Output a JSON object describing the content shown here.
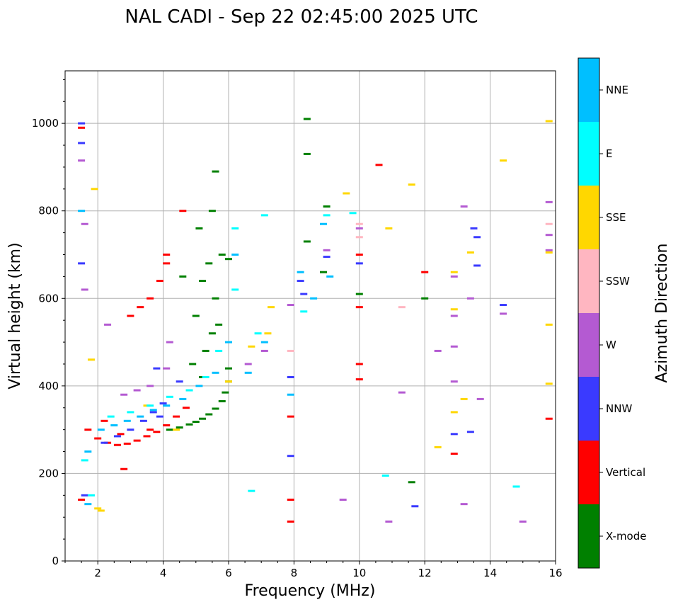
{
  "chart_data": {
    "type": "scatter",
    "title": "NAL CADI - Sep 22 02:45:00 2025 UTC",
    "xlabel": "Frequency (MHz)",
    "ylabel": "Virtual height (km)",
    "xlim": [
      1,
      16
    ],
    "ylim": [
      0,
      1120
    ],
    "xticks": [
      2,
      4,
      6,
      8,
      10,
      12,
      14,
      16
    ],
    "yticks": [
      0,
      200,
      400,
      600,
      800,
      1000
    ],
    "grid": true,
    "colorbar": {
      "title": "Azimuth Direction",
      "categories": [
        {
          "name": "X-mode",
          "color": "#008000"
        },
        {
          "name": "Vertical",
          "color": "#ff0000"
        },
        {
          "name": "NNW",
          "color": "#3a3aff"
        },
        {
          "name": "W",
          "color": "#b45ad2"
        },
        {
          "name": "SSW",
          "color": "#ffb6c1"
        },
        {
          "name": "SSE",
          "color": "#ffd700"
        },
        {
          "name": "E",
          "color": "#00ffff"
        },
        {
          "name": "NNE",
          "color": "#00bfff"
        }
      ]
    },
    "series": [
      {
        "name": "X-mode",
        "points": [
          [
            4.2,
            300
          ],
          [
            4.5,
            305
          ],
          [
            4.8,
            312
          ],
          [
            5.0,
            318
          ],
          [
            5.2,
            325
          ],
          [
            5.4,
            335
          ],
          [
            5.6,
            348
          ],
          [
            5.8,
            365
          ],
          [
            5.9,
            385
          ],
          [
            6.0,
            410
          ],
          [
            6.0,
            440
          ],
          [
            5.3,
            480
          ],
          [
            5.5,
            520
          ],
          [
            5.0,
            560
          ],
          [
            5.6,
            600
          ],
          [
            5.2,
            640
          ],
          [
            5.4,
            680
          ],
          [
            5.8,
            700
          ],
          [
            5.1,
            760
          ],
          [
            5.5,
            800
          ],
          [
            5.6,
            890
          ],
          [
            8.4,
            730
          ],
          [
            8.4,
            930
          ],
          [
            8.4,
            1010
          ],
          [
            8.9,
            660
          ],
          [
            9.0,
            810
          ],
          [
            10.0,
            610
          ],
          [
            12.0,
            600
          ],
          [
            11.6,
            180
          ],
          [
            5.2,
            420
          ],
          [
            4.9,
            450
          ],
          [
            5.7,
            540
          ],
          [
            6.0,
            690
          ],
          [
            4.6,
            650
          ]
        ]
      },
      {
        "name": "Vertical",
        "points": [
          [
            1.5,
            990
          ],
          [
            1.5,
            140
          ],
          [
            1.7,
            300
          ],
          [
            2.0,
            280
          ],
          [
            2.3,
            270
          ],
          [
            2.6,
            265
          ],
          [
            2.9,
            268
          ],
          [
            3.2,
            275
          ],
          [
            3.5,
            285
          ],
          [
            3.8,
            295
          ],
          [
            4.1,
            310
          ],
          [
            4.4,
            330
          ],
          [
            4.7,
            350
          ],
          [
            2.2,
            320
          ],
          [
            2.7,
            290
          ],
          [
            3.6,
            300
          ],
          [
            3.0,
            560
          ],
          [
            3.3,
            580
          ],
          [
            3.6,
            600
          ],
          [
            3.9,
            640
          ],
          [
            4.1,
            680
          ],
          [
            4.1,
            700
          ],
          [
            4.6,
            800
          ],
          [
            7.9,
            330
          ],
          [
            7.9,
            140
          ],
          [
            7.9,
            90
          ],
          [
            10.0,
            700
          ],
          [
            10.0,
            580
          ],
          [
            10.0,
            450
          ],
          [
            10.0,
            415
          ],
          [
            10.6,
            905
          ],
          [
            12.0,
            660
          ],
          [
            12.9,
            245
          ],
          [
            15.8,
            325
          ],
          [
            2.8,
            210
          ]
        ]
      },
      {
        "name": "NNW",
        "points": [
          [
            1.5,
            1000
          ],
          [
            1.5,
            955
          ],
          [
            1.5,
            680
          ],
          [
            1.6,
            150
          ],
          [
            2.2,
            270
          ],
          [
            2.6,
            285
          ],
          [
            3.0,
            300
          ],
          [
            3.4,
            320
          ],
          [
            3.7,
            340
          ],
          [
            3.9,
            330
          ],
          [
            4.0,
            360
          ],
          [
            4.5,
            410
          ],
          [
            3.8,
            440
          ],
          [
            7.9,
            420
          ],
          [
            7.9,
            240
          ],
          [
            8.2,
            640
          ],
          [
            8.3,
            610
          ],
          [
            9.0,
            695
          ],
          [
            10.0,
            680
          ],
          [
            11.7,
            125
          ],
          [
            12.9,
            290
          ],
          [
            13.4,
            295
          ],
          [
            13.5,
            760
          ],
          [
            13.6,
            740
          ],
          [
            13.6,
            675
          ],
          [
            14.4,
            585
          ]
        ]
      },
      {
        "name": "W",
        "points": [
          [
            1.5,
            915
          ],
          [
            1.6,
            770
          ],
          [
            1.6,
            620
          ],
          [
            2.8,
            380
          ],
          [
            3.2,
            390
          ],
          [
            3.6,
            400
          ],
          [
            2.3,
            540
          ],
          [
            4.2,
            500
          ],
          [
            4.1,
            440
          ],
          [
            6.6,
            450
          ],
          [
            7.1,
            480
          ],
          [
            7.9,
            585
          ],
          [
            9.0,
            710
          ],
          [
            9.5,
            140
          ],
          [
            10.0,
            760
          ],
          [
            10.9,
            90
          ],
          [
            11.3,
            385
          ],
          [
            12.4,
            480
          ],
          [
            12.9,
            490
          ],
          [
            12.9,
            410
          ],
          [
            12.9,
            650
          ],
          [
            12.9,
            560
          ],
          [
            13.2,
            810
          ],
          [
            13.2,
            130
          ],
          [
            13.4,
            600
          ],
          [
            14.4,
            565
          ],
          [
            15.0,
            90
          ],
          [
            15.8,
            820
          ],
          [
            15.8,
            710
          ],
          [
            15.8,
            745
          ],
          [
            13.7,
            370
          ]
        ]
      },
      {
        "name": "SSW",
        "points": [
          [
            7.9,
            480
          ],
          [
            10.0,
            770
          ],
          [
            10.0,
            740
          ],
          [
            11.3,
            580
          ],
          [
            15.8,
            770
          ]
        ]
      },
      {
        "name": "SSE",
        "points": [
          [
            1.8,
            460
          ],
          [
            1.9,
            850
          ],
          [
            2.0,
            120
          ],
          [
            2.1,
            115
          ],
          [
            3.5,
            355
          ],
          [
            4.4,
            300
          ],
          [
            6.0,
            410
          ],
          [
            6.7,
            490
          ],
          [
            7.2,
            520
          ],
          [
            7.3,
            580
          ],
          [
            9.6,
            840
          ],
          [
            10.9,
            760
          ],
          [
            11.6,
            860
          ],
          [
            12.4,
            260
          ],
          [
            12.9,
            340
          ],
          [
            12.9,
            575
          ],
          [
            12.9,
            660
          ],
          [
            13.2,
            370
          ],
          [
            13.4,
            705
          ],
          [
            14.4,
            915
          ],
          [
            15.8,
            1005
          ],
          [
            15.8,
            540
          ],
          [
            15.8,
            405
          ],
          [
            15.8,
            705
          ]
        ]
      },
      {
        "name": "E",
        "points": [
          [
            1.6,
            230
          ],
          [
            1.8,
            150
          ],
          [
            2.4,
            330
          ],
          [
            3.0,
            340
          ],
          [
            3.6,
            355
          ],
          [
            4.2,
            375
          ],
          [
            4.8,
            390
          ],
          [
            5.3,
            420
          ],
          [
            5.7,
            480
          ],
          [
            6.2,
            760
          ],
          [
            6.2,
            620
          ],
          [
            6.7,
            160
          ],
          [
            6.9,
            520
          ],
          [
            7.1,
            790
          ],
          [
            8.3,
            570
          ],
          [
            9.0,
            790
          ],
          [
            9.8,
            795
          ],
          [
            10.8,
            195
          ],
          [
            14.8,
            170
          ]
        ]
      },
      {
        "name": "NNE",
        "points": [
          [
            1.5,
            800
          ],
          [
            1.7,
            250
          ],
          [
            1.7,
            130
          ],
          [
            2.1,
            300
          ],
          [
            2.5,
            310
          ],
          [
            2.9,
            320
          ],
          [
            3.3,
            330
          ],
          [
            3.7,
            345
          ],
          [
            4.1,
            355
          ],
          [
            4.6,
            370
          ],
          [
            5.1,
            400
          ],
          [
            5.6,
            430
          ],
          [
            6.0,
            500
          ],
          [
            6.2,
            700
          ],
          [
            6.6,
            430
          ],
          [
            7.1,
            500
          ],
          [
            7.9,
            380
          ],
          [
            8.2,
            660
          ],
          [
            8.6,
            600
          ],
          [
            8.9,
            770
          ],
          [
            9.1,
            650
          ]
        ]
      }
    ]
  }
}
